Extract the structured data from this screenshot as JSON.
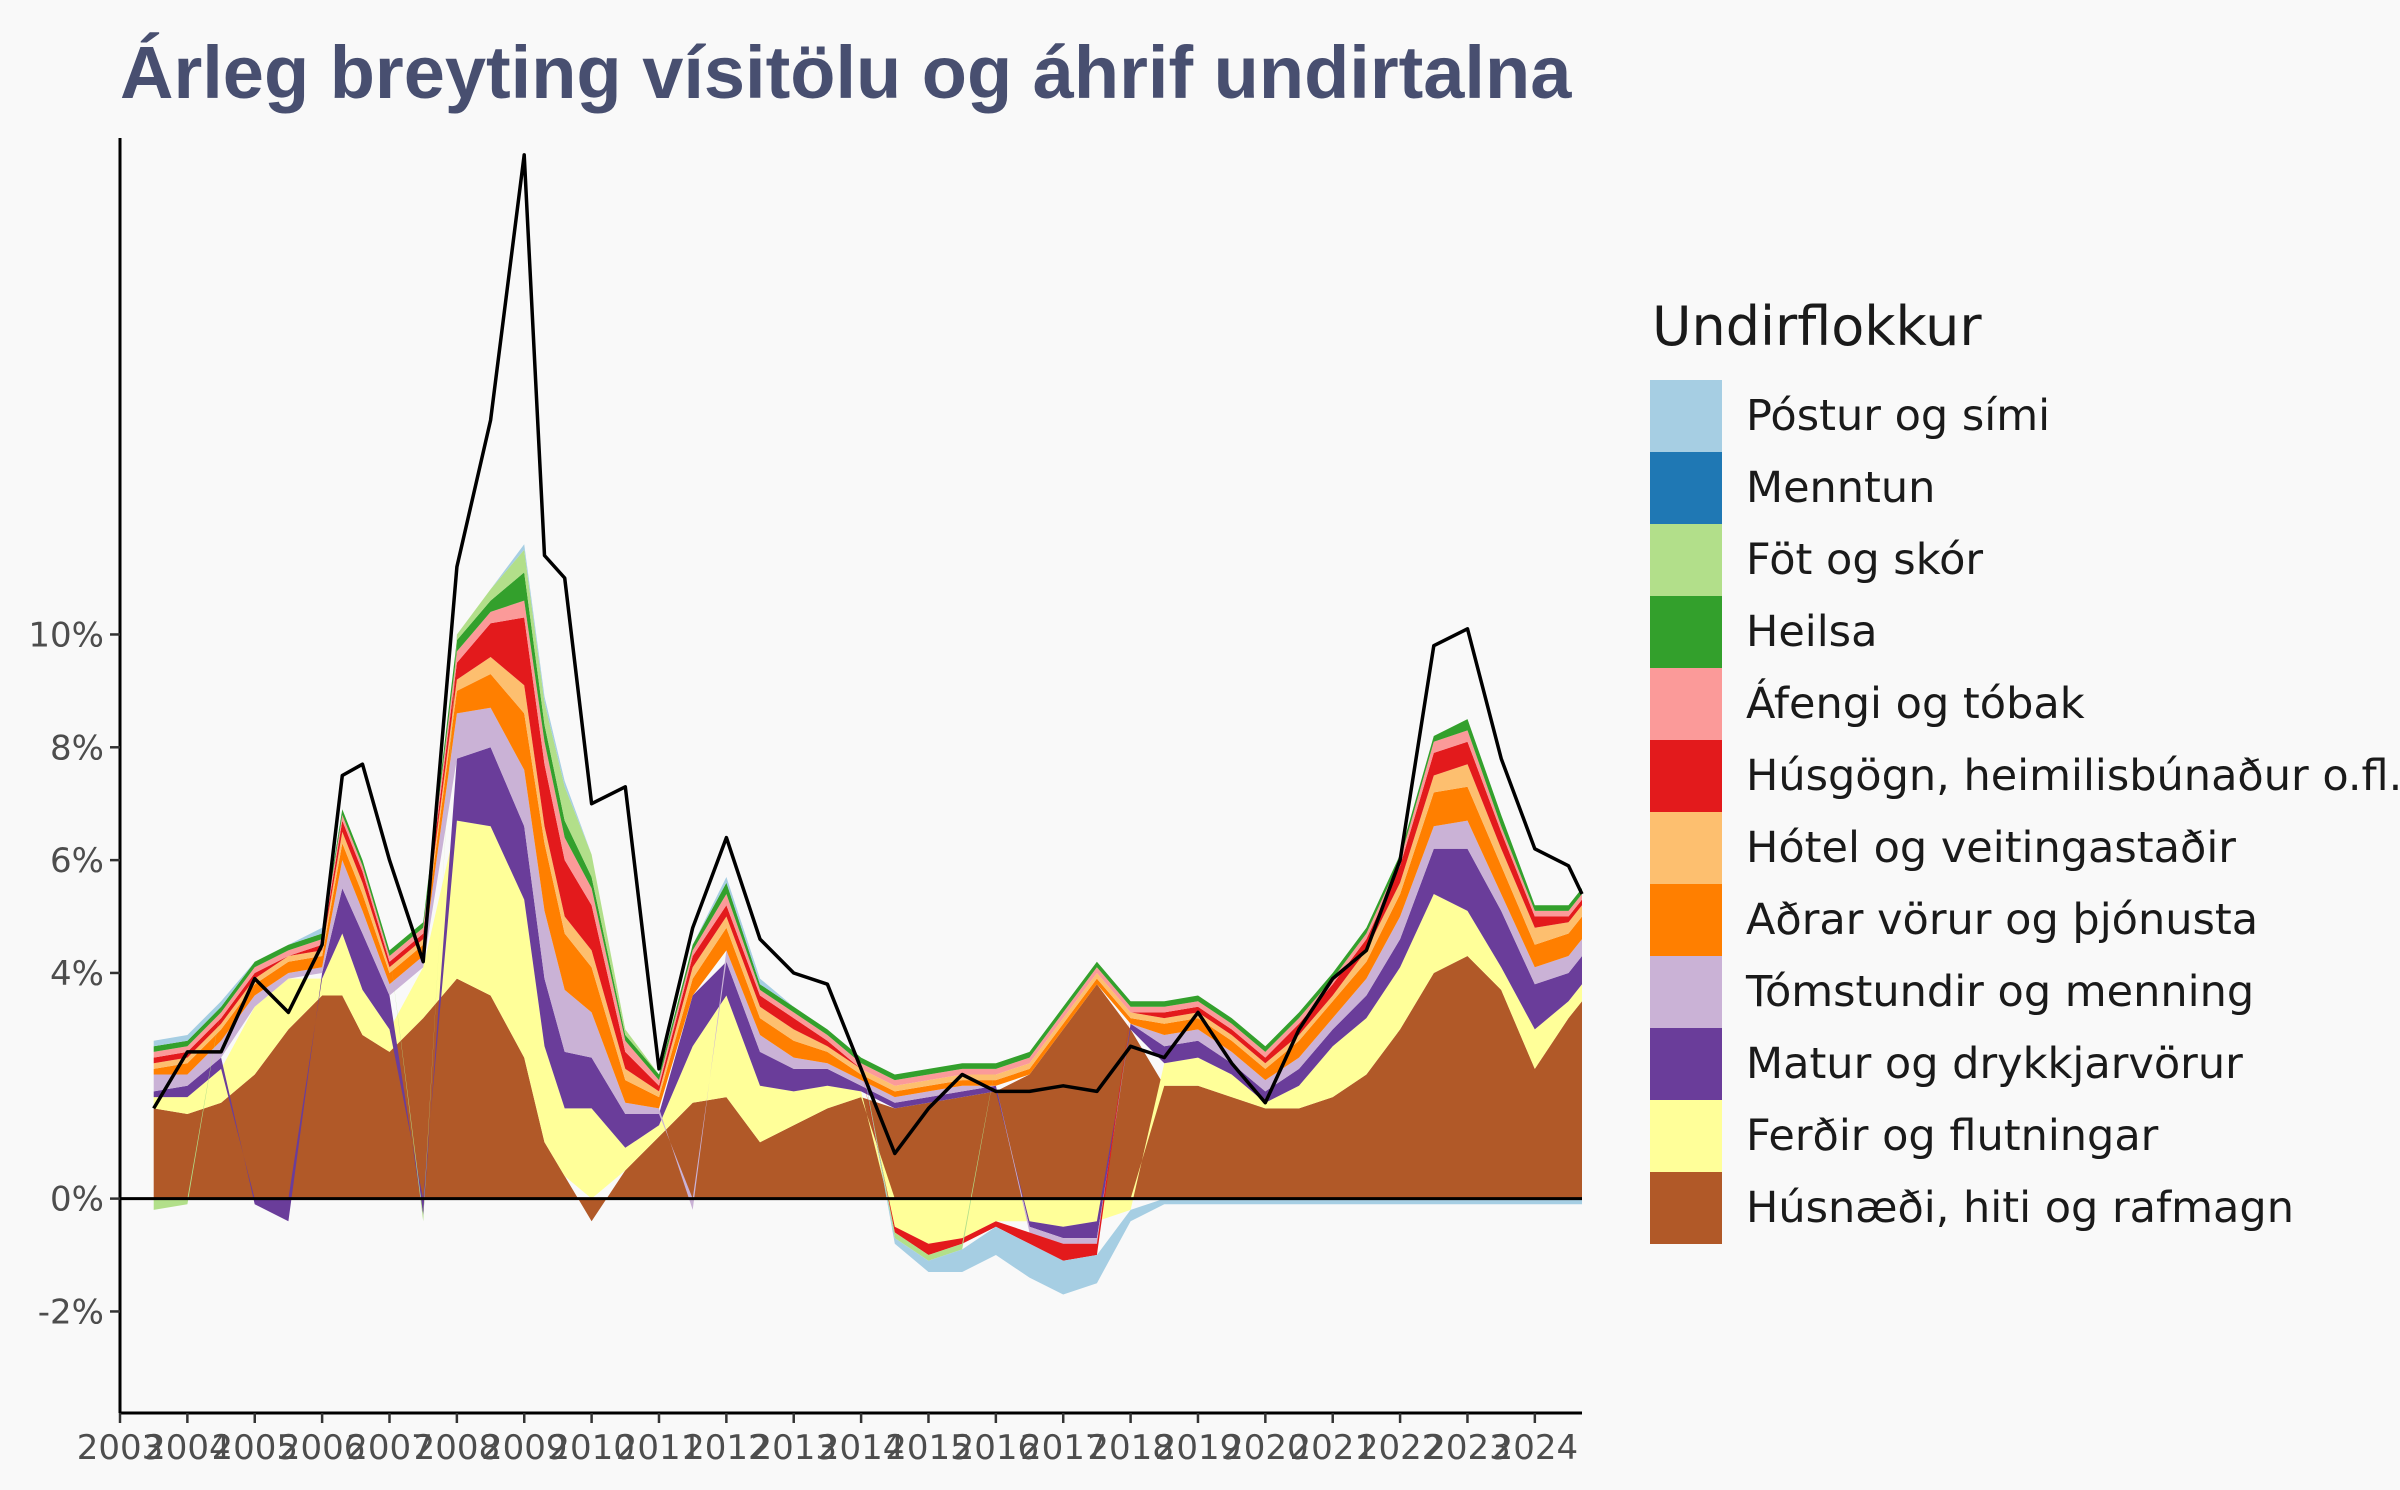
{
  "chart_data": {
    "type": "area",
    "title": "Árleg breyting vísitölu og áhrif undirtalna",
    "legend_title": "Undirflokkur",
    "legend_position": "right",
    "grid": false,
    "ylim": [
      -0.038,
      0.188
    ],
    "xlim": [
      2003,
      2024.7
    ],
    "y_ticks": [
      -0.02,
      0,
      0.04,
      0.06,
      0.08,
      0.1
    ],
    "y_tick_labels": [
      "-2%",
      "0%",
      "4%",
      "6%",
      "8%",
      "10%"
    ],
    "x_ticks": [
      2003,
      2004,
      2005,
      2006,
      2007,
      2008,
      2009,
      2010,
      2011,
      2012,
      2013,
      2014,
      2015,
      2016,
      2017,
      2018,
      2019,
      2020,
      2021,
      2022,
      2023,
      2024
    ],
    "x_tick_labels": [
      "2003",
      "2004",
      "2005",
      "2006",
      "2007",
      "2008",
      "2009",
      "2010",
      "2011",
      "2012",
      "2013",
      "2014",
      "2015",
      "2016",
      "2017",
      "2018",
      "2019",
      "2020",
      "2021",
      "2022",
      "2023",
      "2024"
    ],
    "x": [
      2003.5,
      2004.0,
      2004.5,
      2005.0,
      2005.5,
      2006.0,
      2006.3,
      2006.6,
      2007.0,
      2007.5,
      2008.0,
      2008.5,
      2009.0,
      2009.3,
      2009.6,
      2010.0,
      2010.5,
      2011.0,
      2011.5,
      2012.0,
      2012.5,
      2013.0,
      2013.5,
      2014.0,
      2014.5,
      2015.0,
      2015.5,
      2016.0,
      2016.5,
      2017.0,
      2017.5,
      2018.0,
      2018.5,
      2019.0,
      2019.5,
      2020.0,
      2020.5,
      2021.0,
      2021.5,
      2022.0,
      2022.5,
      2023.0,
      2023.5,
      2024.0,
      2024.5,
      2024.7
    ],
    "series": [
      {
        "name": "Húsnæði, hiti og rafmagn",
        "color": "#b15928",
        "values": [
          0.016,
          0.015,
          0.017,
          0.022,
          0.03,
          0.036,
          0.036,
          0.029,
          0.026,
          0.032,
          0.039,
          0.036,
          0.025,
          0.01,
          0.004,
          -0.004,
          0.005,
          0.011,
          0.017,
          0.018,
          0.01,
          0.013,
          0.016,
          0.018,
          0.016,
          0.017,
          0.018,
          0.019,
          0.022,
          0.03,
          0.038,
          0.03,
          0.02,
          0.02,
          0.018,
          0.016,
          0.016,
          0.018,
          0.022,
          0.03,
          0.04,
          0.043,
          0.037,
          0.023,
          0.032,
          0.035
        ]
      },
      {
        "name": "Ferðir og flutningar",
        "color": "#ffff99",
        "values": [
          0.002,
          0.003,
          0.006,
          0.012,
          0.009,
          0.003,
          0.011,
          0.008,
          0.004,
          0.009,
          0.028,
          0.03,
          0.028,
          0.017,
          0.012,
          0.016,
          0.004,
          0.002,
          0.01,
          0.018,
          0.01,
          0.006,
          0.004,
          0.001,
          -0.005,
          -0.008,
          -0.007,
          -0.004,
          -0.004,
          -0.005,
          -0.004,
          -0.002,
          0.004,
          0.005,
          0.004,
          0.001,
          0.004,
          0.009,
          0.01,
          0.011,
          0.014,
          0.008,
          0.004,
          0.007,
          0.003,
          0.003
        ]
      },
      {
        "name": "Matur og drykkjarvörur",
        "color": "#6a3d9a",
        "values": [
          0.001,
          0.002,
          0.002,
          -0.001,
          -0.004,
          0.001,
          0.008,
          0.01,
          0.006,
          -0.003,
          0.011,
          0.014,
          0.013,
          0.012,
          0.01,
          0.009,
          0.006,
          0.002,
          0.009,
          0.006,
          0.006,
          0.004,
          0.003,
          0.001,
          0.001,
          0.001,
          0.001,
          0.001,
          -0.001,
          -0.002,
          -0.003,
          0.001,
          0.003,
          0.003,
          0.002,
          0.002,
          0.003,
          0.003,
          0.004,
          0.005,
          0.008,
          0.011,
          0.01,
          0.008,
          0.005,
          0.005
        ]
      },
      {
        "name": "Tómstundir og menning",
        "color": "#cab2d6",
        "values": [
          0.003,
          0.002,
          0.003,
          0.002,
          0.001,
          0.001,
          0.005,
          0.004,
          0.002,
          0.002,
          0.008,
          0.007,
          0.01,
          0.012,
          0.011,
          0.008,
          0.002,
          0.001,
          -0.002,
          0.002,
          0.003,
          0.002,
          0.001,
          0.001,
          0.001,
          0.001,
          0.001,
          0.0,
          -0.001,
          -0.001,
          -0.001,
          0.0,
          0.002,
          0.002,
          0.002,
          0.002,
          0.002,
          0.002,
          0.003,
          0.004,
          0.004,
          0.005,
          0.003,
          0.003,
          0.003,
          0.003
        ]
      },
      {
        "name": "Aðrar vörur og þjónusta",
        "color": "#ff7f00",
        "values": [
          0.001,
          0.002,
          0.002,
          0.002,
          0.002,
          0.002,
          0.003,
          0.003,
          0.002,
          0.002,
          0.004,
          0.006,
          0.01,
          0.012,
          0.01,
          0.008,
          0.004,
          0.002,
          0.003,
          0.004,
          0.003,
          0.003,
          0.002,
          0.001,
          0.001,
          0.001,
          0.001,
          0.001,
          0.001,
          0.001,
          0.001,
          0.001,
          0.002,
          0.002,
          0.002,
          0.002,
          0.003,
          0.003,
          0.003,
          0.004,
          0.006,
          0.006,
          0.005,
          0.004,
          0.004,
          0.004
        ]
      },
      {
        "name": "Hótel og veitingastaðir",
        "color": "#fdbf6f",
        "values": [
          0.001,
          0.001,
          0.001,
          0.001,
          0.001,
          0.001,
          0.002,
          0.002,
          0.001,
          0.001,
          0.002,
          0.003,
          0.005,
          0.003,
          0.003,
          0.003,
          0.002,
          0.001,
          0.002,
          0.002,
          0.002,
          0.002,
          0.001,
          0.001,
          0.001,
          0.001,
          0.001,
          0.001,
          0.001,
          0.001,
          0.001,
          0.001,
          0.001,
          0.001,
          0.001,
          0.001,
          0.001,
          0.001,
          0.002,
          0.002,
          0.003,
          0.004,
          0.003,
          0.003,
          0.002,
          0.002
        ]
      },
      {
        "name": "Húsgögn, heimilisbúnaður o.fl.",
        "color": "#e31a1c",
        "values": [
          0.001,
          0.001,
          0.001,
          0.001,
          0.0,
          0.001,
          0.002,
          0.002,
          0.001,
          0.001,
          0.003,
          0.006,
          0.012,
          0.011,
          0.01,
          0.008,
          0.003,
          0.001,
          0.002,
          0.002,
          0.002,
          0.002,
          0.001,
          0.0,
          -0.001,
          -0.002,
          -0.001,
          -0.001,
          -0.002,
          -0.003,
          -0.002,
          0.0,
          0.001,
          0.001,
          0.001,
          0.001,
          0.002,
          0.002,
          0.002,
          0.003,
          0.004,
          0.004,
          0.003,
          0.002,
          0.001,
          0.001
        ]
      },
      {
        "name": "Áfengi og tóbak",
        "color": "#fb9a99",
        "values": [
          0.001,
          0.001,
          0.001,
          0.001,
          0.001,
          0.001,
          0.001,
          0.001,
          0.001,
          0.001,
          0.002,
          0.002,
          0.003,
          0.004,
          0.004,
          0.003,
          0.002,
          0.001,
          0.001,
          0.002,
          0.001,
          0.001,
          0.001,
          0.001,
          0.001,
          0.001,
          0.001,
          0.001,
          0.001,
          0.001,
          0.001,
          0.001,
          0.001,
          0.001,
          0.001,
          0.001,
          0.001,
          0.001,
          0.001,
          0.001,
          0.002,
          0.002,
          0.001,
          0.001,
          0.001,
          0.001
        ]
      },
      {
        "name": "Heilsa",
        "color": "#33a02c",
        "values": [
          0.001,
          0.001,
          0.001,
          0.001,
          0.001,
          0.001,
          0.001,
          0.001,
          0.001,
          0.001,
          0.002,
          0.002,
          0.005,
          0.003,
          0.003,
          0.002,
          0.001,
          0.001,
          0.001,
          0.002,
          0.001,
          0.001,
          0.001,
          0.001,
          0.001,
          0.001,
          0.001,
          0.001,
          0.001,
          0.001,
          0.001,
          0.001,
          0.001,
          0.001,
          0.001,
          0.001,
          0.001,
          0.001,
          0.001,
          0.001,
          0.001,
          0.002,
          0.002,
          0.001,
          0.001,
          0.001
        ]
      },
      {
        "name": "Föt og skór",
        "color": "#b2df8a",
        "values": [
          -0.002,
          -0.001,
          0.0,
          0.0,
          0.0,
          0.0,
          0.0,
          0.0,
          0.0,
          -0.001,
          0.001,
          0.002,
          0.004,
          0.004,
          0.006,
          0.004,
          0.001,
          0.0,
          0.0,
          0.0,
          0.0,
          0.0,
          0.0,
          0.0,
          -0.001,
          -0.001,
          -0.001,
          0.0,
          0.0,
          0.0,
          0.0,
          0.0,
          0.0,
          0.0,
          0.0,
          0.0,
          0.0,
          0.0,
          0.0,
          0.0,
          0.0,
          0.0,
          0.0,
          0.0,
          0.0,
          0.0
        ]
      },
      {
        "name": "Menntun",
        "color": "#1f78b4",
        "values": [
          0.0,
          0.0,
          0.0,
          0.0,
          0.0,
          0.0,
          0.0,
          0.0,
          0.0,
          0.0,
          0.0,
          0.0,
          0.0,
          0.0,
          0.0,
          0.0,
          0.0,
          0.0,
          0.0,
          0.0,
          0.0,
          0.0,
          0.0,
          0.0,
          0.0,
          0.0,
          0.0,
          0.0,
          0.0,
          0.0,
          0.0,
          0.0,
          0.0,
          0.0,
          0.0,
          0.0,
          0.0,
          0.0,
          0.0,
          0.0,
          0.0,
          0.0,
          0.0,
          0.0,
          0.0,
          0.0
        ]
      },
      {
        "name": "Póstur og sími",
        "color": "#a6cee3",
        "values": [
          0.001,
          0.001,
          0.001,
          0.0,
          0.0,
          0.001,
          0.0,
          0.0,
          0.0,
          0.0,
          0.0,
          0.0,
          0.001,
          0.001,
          0.001,
          0.0,
          0.0,
          0.0,
          0.0,
          0.001,
          0.001,
          0.0,
          0.0,
          0.0,
          -0.001,
          -0.002,
          -0.004,
          -0.005,
          -0.006,
          -0.006,
          -0.005,
          -0.002,
          -0.001,
          -0.001,
          -0.001,
          -0.001,
          -0.001,
          -0.001,
          -0.001,
          -0.001,
          -0.001,
          -0.001,
          -0.001,
          -0.001,
          -0.001,
          -0.001
        ]
      }
    ],
    "total_line": {
      "color": "#000000",
      "values": [
        0.016,
        0.026,
        0.026,
        0.039,
        0.033,
        0.045,
        0.075,
        0.077,
        0.06,
        0.042,
        0.112,
        0.138,
        0.185,
        0.114,
        0.11,
        0.07,
        0.073,
        0.023,
        0.048,
        0.064,
        0.046,
        0.04,
        0.038,
        0.023,
        0.008,
        0.016,
        0.022,
        0.019,
        0.019,
        0.02,
        0.019,
        0.027,
        0.025,
        0.033,
        0.024,
        0.017,
        0.03,
        0.039,
        0.044,
        0.06,
        0.098,
        0.101,
        0.078,
        0.062,
        0.059,
        0.054
      ]
    }
  }
}
